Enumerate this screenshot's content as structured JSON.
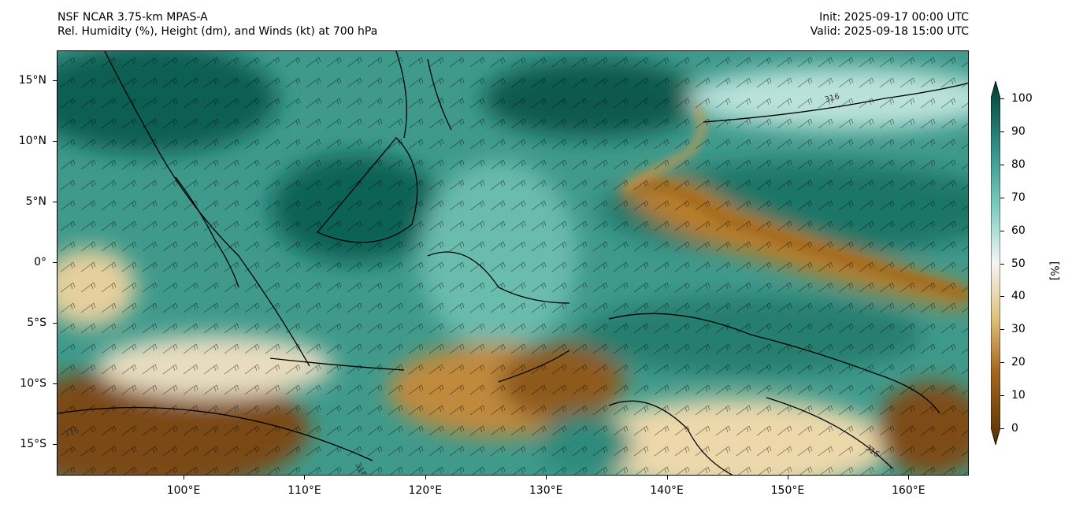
{
  "header": {
    "title_line1": "NSF NCAR 3.75-km MPAS-A",
    "title_line2": "Rel. Humidity (%), Height (dm), and Winds (kt) at 700 hPa",
    "init": "Init: 2025-09-17 00:00 UTC",
    "valid": "Valid: 2025-09-18 15:00 UTC"
  },
  "map": {
    "lon_range": [
      89.5,
      165
    ],
    "lat_range": [
      -17.6,
      17.5
    ],
    "lat_ticks": [
      {
        "value": 15,
        "label": "15°N"
      },
      {
        "value": 10,
        "label": "10°N"
      },
      {
        "value": 5,
        "label": "5°N"
      },
      {
        "value": 0,
        "label": "0°"
      },
      {
        "value": -5,
        "label": "5°S"
      },
      {
        "value": -10,
        "label": "10°S"
      },
      {
        "value": -15,
        "label": "15°S"
      }
    ],
    "lon_ticks": [
      {
        "value": 100,
        "label": "100°E"
      },
      {
        "value": 110,
        "label": "110°E"
      },
      {
        "value": 120,
        "label": "120°E"
      },
      {
        "value": 130,
        "label": "130°E"
      },
      {
        "value": 140,
        "label": "140°E"
      },
      {
        "value": 150,
        "label": "150°E"
      },
      {
        "value": 160,
        "label": "160°E"
      }
    ],
    "contour_labels": [
      "316",
      "316",
      "316",
      "316"
    ]
  },
  "colorbar": {
    "ticks": [
      "0",
      "10",
      "20",
      "30",
      "40",
      "50",
      "60",
      "70",
      "80",
      "90",
      "100"
    ],
    "unit": "[%]",
    "colors": {
      "low": "#543005",
      "mid": "#f5f5f5",
      "high": "#003c30"
    }
  }
}
